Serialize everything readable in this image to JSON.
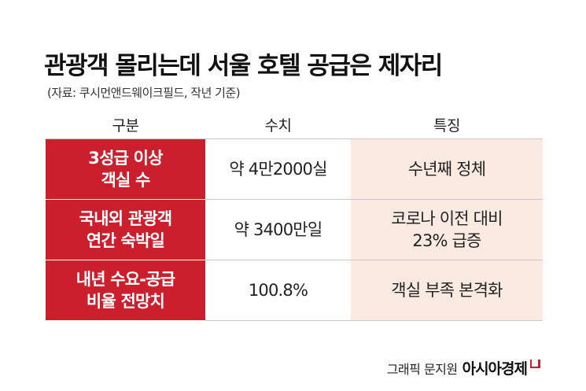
{
  "title": "관광객 몰리는데 서울 호텔 공급은 제자리",
  "source": "(자료: 쿠시먼앤드웨이크필드, 작년 기준)",
  "table": {
    "headers": [
      "구분",
      "수치",
      "특징"
    ],
    "rows": [
      {
        "label": "3성급 이상\n객실 수",
        "value": "약 4만2000실",
        "feature": "수년째 정체"
      },
      {
        "label": "국내외 관광객\n연간 숙박일",
        "value": "약 3400만일",
        "feature": "코로나 이전 대비\n23% 급증"
      },
      {
        "label": "내년 수요-공급\n비율 전망치",
        "value": "100.8%",
        "feature": "객실 부족 본격화"
      }
    ]
  },
  "credit": {
    "graphic": "그래픽 문지원",
    "brand": "아시아경제"
  },
  "colors": {
    "label_bg": "#cc1f2d",
    "feature_bg": "#fbeae2"
  }
}
